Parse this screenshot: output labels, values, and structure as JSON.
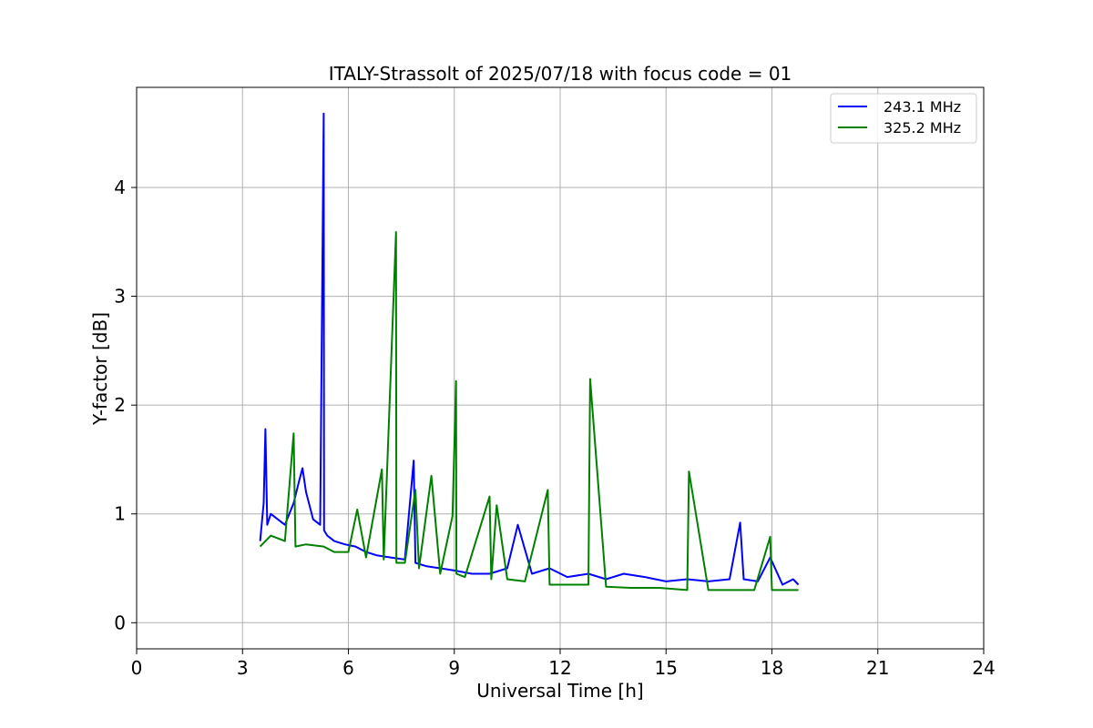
{
  "chart_data": {
    "type": "line",
    "title": "ITALY-Strassolt of 2025/07/18 with focus code = 01",
    "xlabel": "Universal Time [h]",
    "ylabel": "Y-factor [dB]",
    "xlim": [
      0,
      24
    ],
    "ylim": [
      -0.24,
      4.92
    ],
    "xticks": [
      0,
      3,
      6,
      9,
      12,
      15,
      18,
      21,
      24
    ],
    "yticks": [
      0,
      1,
      2,
      3,
      4
    ],
    "grid": true,
    "legend_position": "top-right",
    "series": [
      {
        "name": "243.1 MHz",
        "color": "#0000ff",
        "x": [
          3.5,
          3.6,
          3.65,
          3.7,
          3.8,
          4.0,
          4.2,
          4.45,
          4.6,
          4.7,
          4.8,
          5.0,
          5.2,
          5.3,
          5.31,
          5.4,
          5.6,
          5.9,
          6.2,
          6.5,
          6.8,
          7.2,
          7.6,
          7.85,
          7.9,
          8.2,
          8.6,
          9.0,
          9.5,
          10.0,
          10.5,
          10.8,
          11.2,
          11.7,
          12.2,
          12.8,
          13.3,
          13.8,
          14.4,
          15.0,
          15.6,
          16.2,
          16.8,
          17.1,
          17.2,
          17.6,
          17.95,
          18.3,
          18.6,
          18.75
        ],
        "y": [
          0.75,
          1.1,
          1.78,
          0.9,
          1.0,
          0.95,
          0.9,
          1.1,
          1.3,
          1.42,
          1.2,
          0.95,
          0.9,
          4.68,
          0.85,
          0.8,
          0.75,
          0.72,
          0.7,
          0.65,
          0.62,
          0.6,
          0.58,
          1.49,
          0.55,
          0.52,
          0.5,
          0.48,
          0.45,
          0.45,
          0.5,
          0.9,
          0.45,
          0.5,
          0.42,
          0.45,
          0.4,
          0.45,
          0.42,
          0.38,
          0.4,
          0.38,
          0.4,
          0.92,
          0.4,
          0.38,
          0.6,
          0.35,
          0.4,
          0.35
        ]
      },
      {
        "name": "325.2 MHz",
        "color": "#008000",
        "x": [
          3.5,
          3.8,
          4.2,
          4.45,
          4.5,
          4.8,
          5.3,
          5.6,
          6.0,
          6.25,
          6.5,
          6.95,
          7.0,
          7.35,
          7.36,
          7.6,
          7.9,
          8.0,
          8.35,
          8.6,
          8.95,
          9.05,
          9.06,
          9.3,
          10.0,
          10.05,
          10.2,
          10.5,
          11.0,
          11.65,
          11.7,
          12.2,
          12.8,
          12.85,
          13.3,
          14.0,
          14.8,
          15.6,
          15.65,
          16.2,
          16.8,
          17.5,
          17.95,
          18.0,
          18.4,
          18.75
        ],
        "y": [
          0.7,
          0.8,
          0.75,
          1.74,
          0.7,
          0.72,
          0.7,
          0.65,
          0.65,
          1.04,
          0.6,
          1.41,
          0.58,
          3.59,
          0.55,
          0.55,
          1.22,
          0.5,
          1.35,
          0.45,
          0.98,
          2.22,
          0.45,
          0.42,
          1.16,
          0.4,
          1.08,
          0.4,
          0.38,
          1.22,
          0.35,
          0.35,
          0.35,
          2.24,
          0.33,
          0.32,
          0.32,
          0.3,
          1.39,
          0.3,
          0.3,
          0.3,
          0.79,
          0.3,
          0.3,
          0.3
        ]
      }
    ]
  }
}
